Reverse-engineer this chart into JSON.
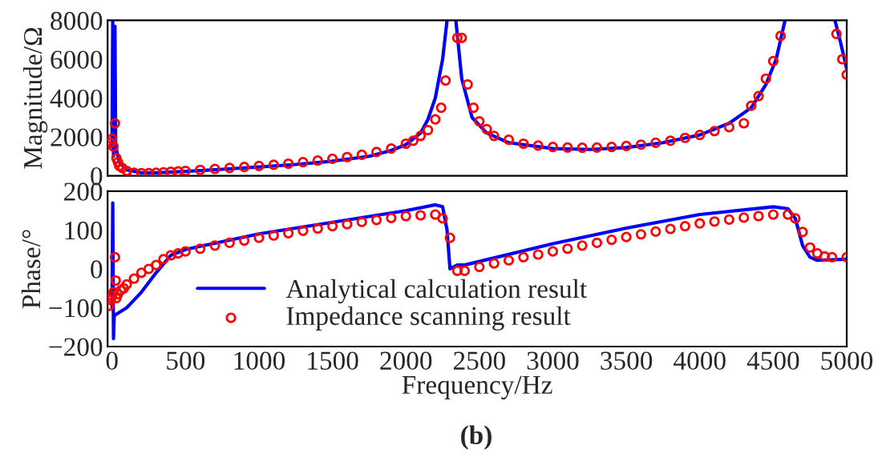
{
  "chart_data": [
    {
      "type": "line",
      "ylabel": "Magnitude/Ω",
      "xlim": [
        -30,
        5000
      ],
      "ylim": [
        0,
        8000
      ],
      "yticks": [
        0,
        2000,
        4000,
        6000,
        8000
      ],
      "xticks": [
        0,
        500,
        1000,
        1500,
        2000,
        2500,
        3000,
        3500,
        4000,
        4500,
        5000
      ],
      "tick_labels": "y",
      "grid": false,
      "legend": false,
      "series": [
        {
          "color": "#0000ff",
          "line_style": "solid",
          "marker": "none",
          "x": [
            0,
            5,
            10,
            20,
            25,
            50,
            100,
            200,
            300,
            500,
            750,
            1000,
            1250,
            1500,
            1750,
            1900,
            2000,
            2100,
            2150,
            2200,
            2250,
            2280,
            2310,
            2340,
            2380,
            2450,
            2550,
            2700,
            3000,
            3250,
            3500,
            3750,
            4000,
            4200,
            4350,
            4450,
            4520,
            4580,
            4750,
            4920,
            4960,
            5000
          ],
          "values": [
            1500,
            8000,
            1000,
            7700,
            1500,
            700,
            300,
            150,
            150,
            220,
            330,
            450,
            580,
            750,
            1000,
            1300,
            1600,
            2200,
            2900,
            4000,
            6000,
            8000,
            null,
            8000,
            5000,
            3000,
            2200,
            1700,
            1400,
            1350,
            1450,
            1700,
            2100,
            2700,
            3500,
            4700,
            6000,
            8000,
            null,
            8000,
            6800,
            5500
          ]
        },
        {
          "type": "scatter",
          "color": "#ff0000",
          "marker": "circle",
          "x": [
            -10,
            0,
            10,
            20,
            30,
            40,
            50,
            70,
            100,
            150,
            200,
            250,
            300,
            350,
            400,
            450,
            500,
            600,
            700,
            800,
            900,
            1000,
            1100,
            1200,
            1300,
            1400,
            1500,
            1600,
            1700,
            1800,
            1900,
            2000,
            2050,
            2100,
            2150,
            2200,
            2240,
            2270,
            2350,
            2380,
            2420,
            2460,
            2500,
            2550,
            2600,
            2700,
            2800,
            2900,
            3000,
            3100,
            3200,
            3300,
            3400,
            3500,
            3600,
            3700,
            3800,
            3900,
            4000,
            4100,
            4200,
            4300,
            4350,
            4400,
            4450,
            4500,
            4550,
            4930,
            4970,
            5000
          ],
          "values": [
            1700,
            1900,
            1500,
            2700,
            900,
            700,
            500,
            400,
            250,
            150,
            130,
            130,
            150,
            170,
            200,
            220,
            250,
            300,
            350,
            400,
            450,
            500,
            560,
            620,
            700,
            780,
            870,
            960,
            1080,
            1220,
            1400,
            1650,
            1800,
            2050,
            2350,
            2900,
            3500,
            4900,
            7100,
            7100,
            4700,
            3500,
            2800,
            2400,
            2050,
            1850,
            1650,
            1550,
            1480,
            1450,
            1440,
            1450,
            1480,
            1530,
            1600,
            1700,
            1800,
            1950,
            2100,
            2300,
            2500,
            2700,
            3600,
            4100,
            5000,
            5900,
            7200,
            7300,
            6000,
            5200
          ]
        }
      ]
    },
    {
      "type": "line",
      "xlabel": "Frequency/Hz",
      "ylabel": "Phase/°",
      "annotations": [
        "(b)"
      ],
      "xlim": [
        -30,
        5000
      ],
      "ylim": [
        -200,
        200
      ],
      "yticks": [
        {
          "value": -200,
          "label": "−200"
        },
        {
          "value": -100,
          "label": "−100"
        },
        0,
        100,
        200
      ],
      "xticks": [
        0,
        500,
        1000,
        1500,
        2000,
        2500,
        3000,
        3500,
        4000,
        4500,
        5000
      ],
      "grid": false,
      "legend": "bottom left",
      "series": [
        {
          "name": "Analytical calculation result",
          "color": "#0000ff",
          "line_style": "solid",
          "marker": "none",
          "x": [
            0,
            5,
            10,
            15,
            100,
            200,
            300,
            400,
            500,
            1000,
            1500,
            2000,
            2200,
            2250,
            2280,
            2300,
            2350,
            2400,
            3000,
            3500,
            4000,
            4500,
            4600,
            4650,
            4700,
            4750,
            4800,
            5000
          ],
          "values": [
            -100,
            170,
            -180,
            -120,
            -100,
            -60,
            -10,
            35,
            50,
            90,
            120,
            150,
            165,
            160,
            100,
            0,
            10,
            10,
            65,
            105,
            140,
            160,
            155,
            130,
            60,
            30,
            22,
            25
          ]
        },
        {
          "type": "scatter",
          "name": "Impedance scanning result",
          "color": "#ff0000",
          "marker": "circle",
          "x": [
            -20,
            -10,
            0,
            10,
            20,
            25,
            30,
            40,
            60,
            80,
            100,
            150,
            200,
            250,
            300,
            350,
            400,
            450,
            500,
            600,
            700,
            800,
            900,
            1000,
            1100,
            1200,
            1300,
            1400,
            1500,
            1600,
            1700,
            1800,
            1900,
            2000,
            2100,
            2200,
            2250,
            2300,
            2350,
            2400,
            2500,
            2600,
            2700,
            2800,
            2900,
            3000,
            3100,
            3200,
            3300,
            3400,
            3500,
            3600,
            3700,
            3800,
            3900,
            4000,
            4100,
            4200,
            4300,
            4400,
            4500,
            4600,
            4650,
            4700,
            4750,
            4800,
            4850,
            4900,
            5000
          ],
          "values": [
            -95,
            -80,
            -70,
            -60,
            30,
            -30,
            -75,
            -65,
            -55,
            -50,
            -40,
            -25,
            -10,
            0,
            10,
            25,
            35,
            40,
            45,
            52,
            60,
            67,
            73,
            80,
            86,
            92,
            98,
            104,
            110,
            115,
            121,
            126,
            131,
            136,
            138,
            140,
            130,
            80,
            -5,
            -5,
            5,
            14,
            22,
            30,
            37,
            45,
            52,
            60,
            67,
            75,
            82,
            89,
            96,
            103,
            110,
            117,
            122,
            127,
            132,
            136,
            140,
            140,
            130,
            95,
            55,
            40,
            32,
            30,
            30
          ]
        }
      ]
    }
  ]
}
